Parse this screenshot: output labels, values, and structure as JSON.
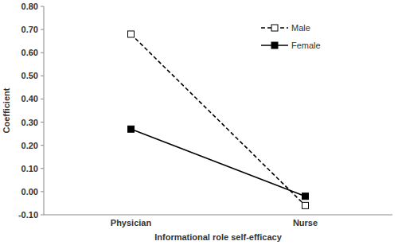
{
  "chart_data": {
    "type": "line",
    "x_label": "Informational role self-efficacy",
    "y_label": "Coefficient",
    "categories": [
      "Physician",
      "Nurse"
    ],
    "series": [
      {
        "name": "Male",
        "color": "#000000",
        "line_style": "dashed",
        "marker": "open-square",
        "values": [
          0.68,
          -0.06
        ]
      },
      {
        "name": "Female",
        "color": "#000000",
        "line_style": "solid",
        "marker": "square",
        "values": [
          0.27,
          -0.02
        ]
      }
    ],
    "ylim": [
      -0.1,
      0.8
    ],
    "yticks": [
      {
        "value": -0.1,
        "label": "-0.10"
      },
      {
        "value": 0,
        "label": "0.00"
      },
      {
        "value": 0.1,
        "label": "0.10"
      },
      {
        "value": 0.2,
        "label": "0.20"
      },
      {
        "value": 0.3,
        "label": "0.30"
      },
      {
        "value": 0.4,
        "label": "0.40"
      },
      {
        "value": 0.5,
        "label": "0.50"
      },
      {
        "value": 0.6,
        "label": "0.60"
      },
      {
        "value": 0.7,
        "label": "0.70"
      },
      {
        "value": 0.8,
        "label": "0.80"
      }
    ],
    "legend": "top-right",
    "grid": false
  }
}
